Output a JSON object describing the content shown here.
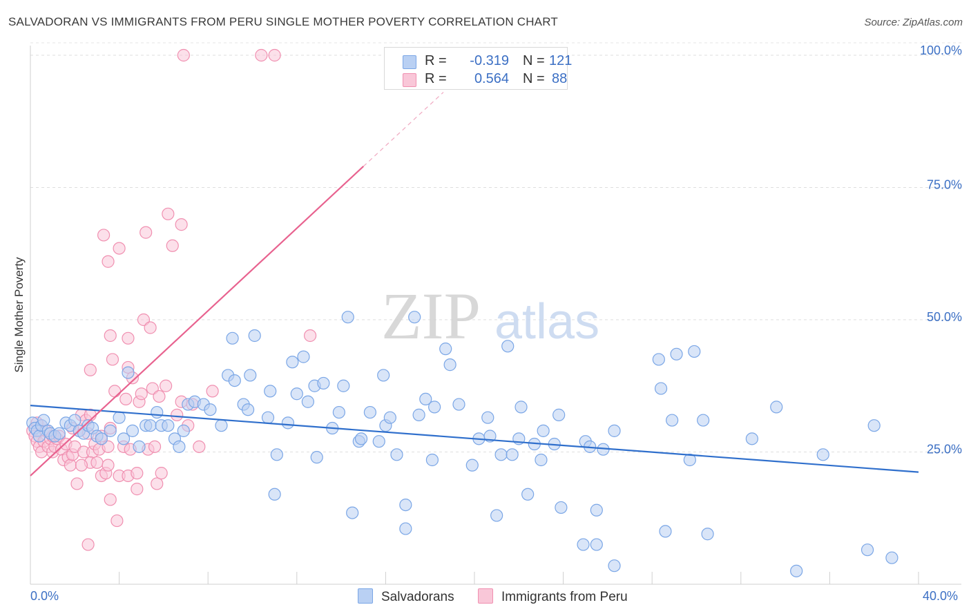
{
  "header": {
    "title": "SALVADORAN VS IMMIGRANTS FROM PERU SINGLE MOTHER POVERTY CORRELATION CHART",
    "source": "Source: ZipAtlas.com"
  },
  "legend": {
    "rows": [
      {
        "r_label": "R =",
        "r_value": "-0.319",
        "n_label": "N =",
        "n_value": "121"
      },
      {
        "r_label": "R =",
        "r_value": "0.564",
        "n_label": "N =",
        "n_value": "88"
      }
    ]
  },
  "bottom_legend": {
    "salvadorans": "Salvadorans",
    "peru": "Immigrants from Peru"
  },
  "watermark": {
    "zip": "ZIP",
    "atlas": "atlas"
  },
  "colors": {
    "blue": "#7aa6e6",
    "blue_fill": "#b9d0f3",
    "blue_line": "#2f6fcc",
    "pink": "#f08fb0",
    "pink_fill": "#f9c7d8",
    "pink_line": "#e8628f",
    "axis_text": "#3b6fc4"
  },
  "chart_data": {
    "type": "scatter",
    "title": "SALVADORAN VS IMMIGRANTS FROM PERU SINGLE MOTHER POVERTY CORRELATION CHART",
    "xlabel": "",
    "ylabel": "Single Mother Poverty",
    "xlim": [
      0,
      40
    ],
    "ylim": [
      0,
      100
    ],
    "x_tick_labels": [
      "0.0%",
      "40.0%"
    ],
    "y_ticks": [
      {
        "value": 25,
        "label": "25.0%"
      },
      {
        "value": 50,
        "label": "50.0%"
      },
      {
        "value": 75,
        "label": "75.0%"
      },
      {
        "value": 100,
        "label": "100.0%"
      }
    ],
    "series": [
      {
        "name": "Salvadorans",
        "color": "#7aa6e6",
        "r": -0.319,
        "n": 121,
        "trend": {
          "x0": 0,
          "y0": 33.8,
          "x1": 40,
          "y1": 21.2
        },
        "points": [
          [
            0.1,
            30.5
          ],
          [
            0.2,
            29.5
          ],
          [
            0.3,
            29
          ],
          [
            0.4,
            28
          ],
          [
            0.5,
            30
          ],
          [
            0.6,
            31
          ],
          [
            0.8,
            29
          ],
          [
            0.9,
            28.5
          ],
          [
            1.1,
            28
          ],
          [
            1.3,
            28.5
          ],
          [
            1.6,
            30.5
          ],
          [
            1.8,
            30
          ],
          [
            2.0,
            31
          ],
          [
            2.2,
            29
          ],
          [
            2.4,
            28.5
          ],
          [
            2.6,
            30
          ],
          [
            2.8,
            29.5
          ],
          [
            3.0,
            28
          ],
          [
            3.2,
            27.5
          ],
          [
            3.6,
            29
          ],
          [
            4.0,
            31.5
          ],
          [
            4.2,
            27.5
          ],
          [
            4.4,
            40
          ],
          [
            4.6,
            29
          ],
          [
            4.9,
            26
          ],
          [
            5.2,
            30
          ],
          [
            5.4,
            30
          ],
          [
            5.7,
            32.5
          ],
          [
            5.9,
            30
          ],
          [
            6.2,
            30
          ],
          [
            6.5,
            27.5
          ],
          [
            6.7,
            26
          ],
          [
            6.9,
            29
          ],
          [
            7.1,
            34
          ],
          [
            7.4,
            34.5
          ],
          [
            7.8,
            34
          ],
          [
            8.1,
            33
          ],
          [
            8.6,
            30
          ],
          [
            8.9,
            39.5
          ],
          [
            9.1,
            46.5
          ],
          [
            9.2,
            38.5
          ],
          [
            9.6,
            34
          ],
          [
            9.8,
            33
          ],
          [
            9.9,
            39.5
          ],
          [
            10.1,
            47
          ],
          [
            10.7,
            31.5
          ],
          [
            10.8,
            36.5
          ],
          [
            11.0,
            17
          ],
          [
            11.1,
            24.5
          ],
          [
            11.6,
            30.5
          ],
          [
            11.8,
            42
          ],
          [
            12.0,
            36
          ],
          [
            12.3,
            43
          ],
          [
            12.5,
            34.5
          ],
          [
            12.8,
            37.5
          ],
          [
            12.9,
            24
          ],
          [
            13.2,
            38
          ],
          [
            13.6,
            29.5
          ],
          [
            13.9,
            32.5
          ],
          [
            14.1,
            37.5
          ],
          [
            14.3,
            50.5
          ],
          [
            14.5,
            13.5
          ],
          [
            14.8,
            27
          ],
          [
            14.9,
            27.5
          ],
          [
            15.3,
            32.5
          ],
          [
            15.7,
            27
          ],
          [
            15.9,
            39.5
          ],
          [
            16.0,
            30
          ],
          [
            16.2,
            31.5
          ],
          [
            16.5,
            24.5
          ],
          [
            16.9,
            15
          ],
          [
            16.9,
            10.5
          ],
          [
            17.3,
            50.5
          ],
          [
            17.5,
            32
          ],
          [
            17.8,
            35
          ],
          [
            18.1,
            23.5
          ],
          [
            18.2,
            33.5
          ],
          [
            18.7,
            44.5
          ],
          [
            18.9,
            41.5
          ],
          [
            19.3,
            34
          ],
          [
            19.9,
            22.5
          ],
          [
            20.2,
            27.5
          ],
          [
            20.6,
            31.5
          ],
          [
            20.7,
            28
          ],
          [
            21.0,
            13
          ],
          [
            21.2,
            24.5
          ],
          [
            21.5,
            45
          ],
          [
            21.7,
            24.5
          ],
          [
            22.0,
            27.5
          ],
          [
            22.1,
            33.5
          ],
          [
            22.4,
            17
          ],
          [
            22.7,
            26.5
          ],
          [
            23.0,
            23.5
          ],
          [
            23.1,
            29
          ],
          [
            23.6,
            26.5
          ],
          [
            23.8,
            32
          ],
          [
            23.9,
            14.5
          ],
          [
            24.9,
            7.5
          ],
          [
            25.0,
            27
          ],
          [
            25.2,
            26
          ],
          [
            25.5,
            14
          ],
          [
            25.5,
            7.5
          ],
          [
            25.8,
            25.5
          ],
          [
            26.3,
            29
          ],
          [
            26.3,
            3.5
          ],
          [
            28.3,
            42.5
          ],
          [
            28.4,
            37
          ],
          [
            28.6,
            10
          ],
          [
            28.9,
            31
          ],
          [
            29.1,
            43.5
          ],
          [
            29.7,
            23.5
          ],
          [
            29.9,
            44
          ],
          [
            30.3,
            31
          ],
          [
            30.5,
            9.5
          ],
          [
            32.5,
            27.5
          ],
          [
            33.6,
            33.5
          ],
          [
            34.5,
            2.5
          ],
          [
            35.7,
            24.5
          ],
          [
            37.7,
            6.5
          ],
          [
            38.0,
            30
          ],
          [
            38.8,
            5
          ]
        ]
      },
      {
        "name": "Immigrants from Peru",
        "color": "#f08fb0",
        "r": 0.564,
        "n": 88,
        "trend": {
          "x0": 0,
          "y0": 20.5,
          "x1": 15,
          "y1": 79
        },
        "trend_dash": {
          "x0": 15,
          "y0": 79,
          "x1": 18.6,
          "y1": 93
        },
        "points": [
          [
            0.1,
            29
          ],
          [
            0.2,
            28
          ],
          [
            0.3,
            27
          ],
          [
            0.4,
            26
          ],
          [
            0.5,
            30
          ],
          [
            0.5,
            25
          ],
          [
            0.6,
            27
          ],
          [
            0.7,
            29
          ],
          [
            0.8,
            26
          ],
          [
            0.9,
            27.5
          ],
          [
            1.0,
            28
          ],
          [
            1.0,
            25
          ],
          [
            1.1,
            26
          ],
          [
            1.2,
            27.5
          ],
          [
            1.3,
            28
          ],
          [
            1.4,
            25.5
          ],
          [
            1.5,
            23.5
          ],
          [
            1.6,
            26.5
          ],
          [
            1.7,
            24
          ],
          [
            1.8,
            22.5
          ],
          [
            1.9,
            24.5
          ],
          [
            2.0,
            26
          ],
          [
            2.1,
            19
          ],
          [
            2.2,
            29
          ],
          [
            2.3,
            32
          ],
          [
            2.4,
            25
          ],
          [
            2.5,
            31
          ],
          [
            2.6,
            28.5
          ],
          [
            2.7,
            32
          ],
          [
            2.8,
            25
          ],
          [
            2.6,
            7.5
          ],
          [
            2.7,
            40.5
          ],
          [
            2.7,
            23
          ],
          [
            2.9,
            26.5
          ],
          [
            3.0,
            23
          ],
          [
            3.1,
            25.5
          ],
          [
            3.2,
            20.5
          ],
          [
            3.2,
            28
          ],
          [
            3.3,
            66
          ],
          [
            3.4,
            21
          ],
          [
            3.5,
            22.5
          ],
          [
            3.5,
            26
          ],
          [
            3.5,
            61
          ],
          [
            3.6,
            47
          ],
          [
            3.6,
            16
          ],
          [
            3.6,
            29.5
          ],
          [
            3.7,
            42.5
          ],
          [
            3.8,
            36.5
          ],
          [
            3.9,
            12
          ],
          [
            4.0,
            63.5
          ],
          [
            4.0,
            20.5
          ],
          [
            4.2,
            26
          ],
          [
            4.3,
            35
          ],
          [
            4.4,
            46.5
          ],
          [
            4.4,
            20.5
          ],
          [
            4.4,
            41
          ],
          [
            4.5,
            25.5
          ],
          [
            4.6,
            39
          ],
          [
            4.8,
            21
          ],
          [
            4.8,
            18
          ],
          [
            4.9,
            34.5
          ],
          [
            5.0,
            36
          ],
          [
            5.1,
            50
          ],
          [
            5.2,
            66.5
          ],
          [
            5.3,
            25.5
          ],
          [
            5.4,
            48.5
          ],
          [
            5.5,
            37
          ],
          [
            5.6,
            26
          ],
          [
            5.7,
            19
          ],
          [
            5.8,
            35.5
          ],
          [
            5.9,
            21
          ],
          [
            6.1,
            37.5
          ],
          [
            6.2,
            70
          ],
          [
            6.4,
            64
          ],
          [
            6.6,
            32
          ],
          [
            6.8,
            68
          ],
          [
            6.8,
            34.5
          ],
          [
            7.1,
            30
          ],
          [
            7.3,
            34
          ],
          [
            7.6,
            26
          ],
          [
            8.2,
            36.5
          ],
          [
            6.9,
            100
          ],
          [
            10.4,
            100
          ],
          [
            11.0,
            100
          ],
          [
            12.6,
            47
          ],
          [
            1.9,
            29.5
          ],
          [
            0.3,
            30.5
          ],
          [
            2.3,
            22.5
          ]
        ]
      }
    ]
  }
}
